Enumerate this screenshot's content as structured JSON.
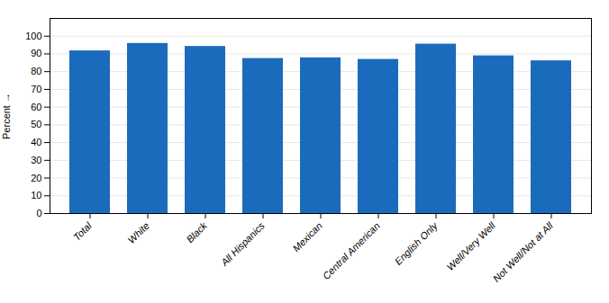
{
  "chart_data": {
    "type": "bar",
    "categories": [
      "Total",
      "White",
      "Black",
      "All Hispanics",
      "Mexican",
      "Central American",
      "English Only",
      "Well/Very Well",
      "Not Well/Not at All"
    ],
    "values": [
      91.7,
      95.9,
      94.2,
      87.4,
      87.8,
      86.9,
      95.5,
      88.9,
      86.1
    ],
    "color": "#1B6BBD",
    "ylabel": "Percent",
    "ylim": [
      0,
      110
    ],
    "yticks": [
      0,
      10,
      20,
      30,
      40,
      50,
      60,
      70,
      80,
      90,
      100
    ],
    "grid": true
  }
}
